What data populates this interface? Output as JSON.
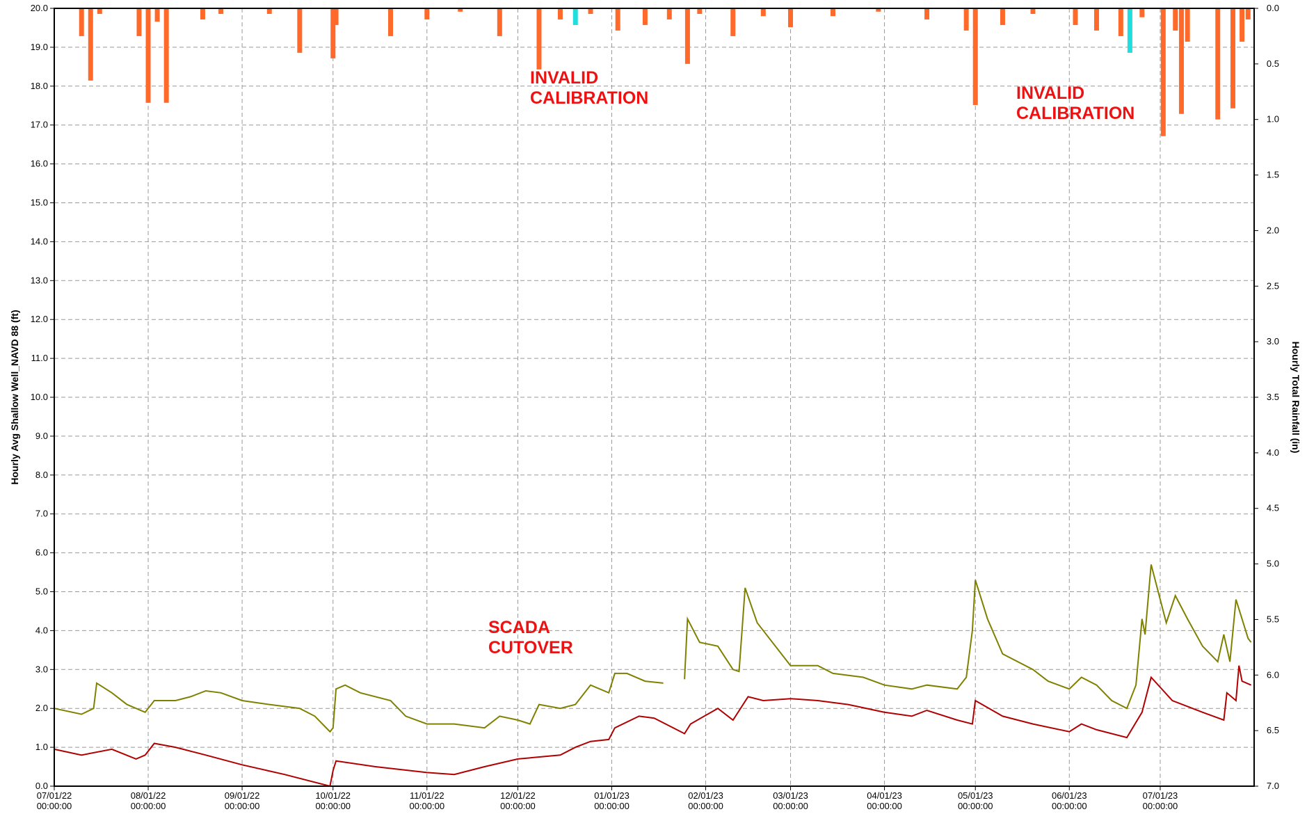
{
  "chart_data": {
    "type": "line",
    "ylabel": "Hourly Avg Shallow Well_NAVD 88 (ft)",
    "y2label": "Hourly Total Rainfall (in)",
    "annotations": [
      "INVALID CALIBRATION",
      "INVALID CALIBRATION",
      "SCADA CUTOVER"
    ],
    "annotation_color": "#ee1111",
    "grid": true,
    "y2_inverted": true,
    "xlim": [
      "2022-07-01",
      "2023-08-01"
    ],
    "xticks": [
      {
        "value": "2022-07-01",
        "label": "07/01/22 00:00:00"
      },
      {
        "value": "2022-08-01",
        "label": "08/01/22 00:00:00"
      },
      {
        "value": "2022-09-01",
        "label": "09/01/22 00:00:00"
      },
      {
        "value": "2022-10-01",
        "label": "10/01/22 00:00:00"
      },
      {
        "value": "2022-11-01",
        "label": "11/01/22 00:00:00"
      },
      {
        "value": "2022-12-01",
        "label": "12/01/22 00:00:00"
      },
      {
        "value": "2023-01-01",
        "label": "01/01/23 00:00:00"
      },
      {
        "value": "2023-02-01",
        "label": "02/01/23 00:00:00"
      },
      {
        "value": "2023-03-01",
        "label": "03/01/23 00:00:00"
      },
      {
        "value": "2023-04-01",
        "label": "04/01/23 00:00:00"
      },
      {
        "value": "2023-05-01",
        "label": "05/01/23 00:00:00"
      },
      {
        "value": "2023-06-01",
        "label": "06/01/23 00:00:00"
      },
      {
        "value": "2023-07-01",
        "label": "07/01/23 00:00:00"
      }
    ],
    "ylim": [
      0,
      20
    ],
    "yticks": [
      {
        "value": 0,
        "label": "0.0"
      },
      {
        "value": 1,
        "label": "1.0"
      },
      {
        "value": 2,
        "label": "2.0"
      },
      {
        "value": 3,
        "label": "3.0"
      },
      {
        "value": 4,
        "label": "4.0"
      },
      {
        "value": 5,
        "label": "5.0"
      },
      {
        "value": 6,
        "label": "6.0"
      },
      {
        "value": 7,
        "label": "7.0"
      },
      {
        "value": 8,
        "label": "8.0"
      },
      {
        "value": 9,
        "label": "9.0"
      },
      {
        "value": 10,
        "label": "10.0"
      },
      {
        "value": 11,
        "label": "11.0"
      },
      {
        "value": 12,
        "label": "12.0"
      },
      {
        "value": 13,
        "label": "13.0"
      },
      {
        "value": 14,
        "label": "14.0"
      },
      {
        "value": 15,
        "label": "15.0"
      },
      {
        "value": 16,
        "label": "16.0"
      },
      {
        "value": 17,
        "label": "17.0"
      },
      {
        "value": 18,
        "label": "18.0"
      },
      {
        "value": 19,
        "label": "19.0"
      },
      {
        "value": 20,
        "label": "20.0"
      }
    ],
    "y2lim": [
      0,
      7
    ],
    "y2ticks": [
      {
        "value": 0,
        "label": "0.0"
      },
      {
        "value": 0.5,
        "label": "0.5"
      },
      {
        "value": 1,
        "label": "1.0"
      },
      {
        "value": 1.5,
        "label": "1.5"
      },
      {
        "value": 2,
        "label": "2.0"
      },
      {
        "value": 2.5,
        "label": "2.5"
      },
      {
        "value": 3,
        "label": "3.0"
      },
      {
        "value": 3.5,
        "label": "3.5"
      },
      {
        "value": 4,
        "label": "4.0"
      },
      {
        "value": 4.5,
        "label": "4.5"
      },
      {
        "value": 5,
        "label": "5.0"
      },
      {
        "value": 5.5,
        "label": "5.5"
      },
      {
        "value": 6,
        "label": "6.0"
      },
      {
        "value": 6.5,
        "label": "6.5"
      },
      {
        "value": 7,
        "label": "7.0"
      }
    ],
    "series": [
      {
        "type": "line",
        "color": "#808000",
        "x": [
          "2022-07-01",
          "2022-07-10",
          "2022-07-14",
          "2022-07-15",
          "2022-07-20",
          "2022-07-25",
          "2022-07-31",
          "2022-08-03",
          "2022-08-10",
          "2022-08-15",
          "2022-08-20",
          "2022-08-25",
          "2022-09-01",
          "2022-09-10",
          "2022-09-20",
          "2022-09-25",
          "2022-09-30",
          "2022-10-01",
          "2022-10-02",
          "2022-10-05",
          "2022-10-10",
          "2022-10-20",
          "2022-10-25",
          "2022-11-01",
          "2022-11-10",
          "2022-11-20",
          "2022-11-25",
          "2022-12-01",
          "2022-12-05",
          "2022-12-08",
          "2022-12-15",
          "2022-12-20",
          "2022-12-25",
          "2022-12-31",
          "2023-01-02",
          "2023-01-06",
          "2023-01-12",
          "2023-01-18",
          "2023-01-21",
          "2023-01-25",
          "2023-01-26",
          "2023-01-30",
          "2023-02-05",
          "2023-02-10",
          "2023-02-12",
          "2023-02-14",
          "2023-02-18",
          "2023-02-25",
          "2023-03-01",
          "2023-03-10",
          "2023-03-15",
          "2023-03-25",
          "2023-04-01",
          "2023-04-10",
          "2023-04-15",
          "2023-04-25",
          "2023-04-28",
          "2023-04-30",
          "2023-05-01",
          "2023-05-05",
          "2023-05-10",
          "2023-05-20",
          "2023-05-25",
          "2023-06-01",
          "2023-06-05",
          "2023-06-10",
          "2023-06-15",
          "2023-06-20",
          "2023-06-23",
          "2023-06-25",
          "2023-06-26",
          "2023-06-28",
          "2023-07-03",
          "2023-07-06",
          "2023-07-10",
          "2023-07-15",
          "2023-07-20",
          "2023-07-22",
          "2023-07-24",
          "2023-07-26",
          "2023-07-30",
          "2023-07-31"
        ],
        "values": [
          2.0,
          1.85,
          2.0,
          2.65,
          2.4,
          2.1,
          1.9,
          2.2,
          2.2,
          2.3,
          2.45,
          2.4,
          2.2,
          2.1,
          2.0,
          1.8,
          1.4,
          1.5,
          2.5,
          2.6,
          2.4,
          2.2,
          1.8,
          1.6,
          1.6,
          1.5,
          1.8,
          1.7,
          1.6,
          2.1,
          2.0,
          2.1,
          2.6,
          2.4,
          2.9,
          2.9,
          2.7,
          2.65,
          null,
          2.75,
          4.3,
          3.7,
          3.6,
          3.0,
          2.95,
          5.1,
          4.2,
          3.5,
          3.1,
          3.1,
          2.9,
          2.8,
          2.6,
          2.5,
          2.6,
          2.5,
          2.8,
          4.0,
          5.3,
          4.3,
          3.4,
          3.0,
          2.7,
          2.5,
          2.8,
          2.6,
          2.2,
          2.0,
          2.6,
          4.3,
          3.9,
          5.7,
          4.2,
          4.9,
          4.3,
          3.6,
          3.2,
          3.9,
          3.2,
          4.8,
          3.8,
          3.7
        ]
      },
      {
        "type": "line",
        "color": "#b00000",
        "x": [
          "2022-07-01",
          "2022-07-10",
          "2022-07-20",
          "2022-07-28",
          "2022-07-31",
          "2022-08-03",
          "2022-08-10",
          "2022-08-20",
          "2022-09-01",
          "2022-09-15",
          "2022-09-30",
          "2022-10-01",
          "2022-10-02",
          "2022-10-15",
          "2022-11-01",
          "2022-11-10",
          "2022-11-15",
          "2022-11-20",
          "2022-12-01",
          "2022-12-15",
          "2022-12-20",
          "2022-12-25",
          "2022-12-31",
          "2023-01-02",
          "2023-01-10",
          "2023-01-15",
          "2023-01-25",
          "2023-01-27",
          "2023-02-05",
          "2023-02-10",
          "2023-02-15",
          "2023-02-20",
          "2023-03-01",
          "2023-03-10",
          "2023-03-20",
          "2023-04-01",
          "2023-04-10",
          "2023-04-15",
          "2023-04-25",
          "2023-04-30",
          "2023-05-01",
          "2023-05-10",
          "2023-05-20",
          "2023-06-01",
          "2023-06-05",
          "2023-06-10",
          "2023-06-20",
          "2023-06-25",
          "2023-06-28",
          "2023-07-05",
          "2023-07-15",
          "2023-07-22",
          "2023-07-23",
          "2023-07-26",
          "2023-07-27",
          "2023-07-28",
          "2023-07-31"
        ],
        "values": [
          0.95,
          0.8,
          0.95,
          0.7,
          0.8,
          1.1,
          1.0,
          0.8,
          0.55,
          0.3,
          0.0,
          0.4,
          0.65,
          0.5,
          0.35,
          0.3,
          0.4,
          0.5,
          0.7,
          0.8,
          1.0,
          1.15,
          1.2,
          1.5,
          1.8,
          1.75,
          1.35,
          1.6,
          2.0,
          1.7,
          2.3,
          2.2,
          2.25,
          2.2,
          2.1,
          1.9,
          1.8,
          1.95,
          1.7,
          1.6,
          2.2,
          1.8,
          1.6,
          1.4,
          1.6,
          1.45,
          1.25,
          1.9,
          2.8,
          2.2,
          1.9,
          1.7,
          2.4,
          2.2,
          3.1,
          2.7,
          2.6
        ]
      },
      {
        "type": "bar",
        "axis": "y2",
        "color": "#ff6a2a",
        "x": [
          "2022-07-10",
          "2022-07-13",
          "2022-07-16",
          "2022-07-29",
          "2022-08-01",
          "2022-08-04",
          "2022-08-07",
          "2022-08-19",
          "2022-08-25",
          "2022-09-10",
          "2022-09-20",
          "2022-10-01",
          "2022-10-02",
          "2022-10-20",
          "2022-11-01",
          "2022-11-12",
          "2022-11-25",
          "2022-12-08",
          "2022-12-15",
          "2022-12-25",
          "2023-01-03",
          "2023-01-12",
          "2023-01-20",
          "2023-01-26",
          "2023-01-30",
          "2023-02-10",
          "2023-02-20",
          "2023-03-01",
          "2023-03-15",
          "2023-03-30",
          "2023-04-15",
          "2023-04-28",
          "2023-05-01",
          "2023-05-10",
          "2023-05-20",
          "2023-06-03",
          "2023-06-10",
          "2023-06-18",
          "2023-06-25",
          "2023-07-02",
          "2023-07-06",
          "2023-07-08",
          "2023-07-10",
          "2023-07-20",
          "2023-07-25",
          "2023-07-28",
          "2023-07-30"
        ],
        "values": [
          0.25,
          0.65,
          0.05,
          0.25,
          0.85,
          0.12,
          0.85,
          0.1,
          0.05,
          0.05,
          0.4,
          0.45,
          0.15,
          0.25,
          0.1,
          0.03,
          0.25,
          0.55,
          0.1,
          0.05,
          0.2,
          0.15,
          0.1,
          0.5,
          0.05,
          0.25,
          0.07,
          0.17,
          0.07,
          0.03,
          0.1,
          0.2,
          0.87,
          0.15,
          0.05,
          0.15,
          0.2,
          0.25,
          0.08,
          1.15,
          0.2,
          0.95,
          0.3,
          1.0,
          0.9,
          0.3,
          0.1
        ]
      },
      {
        "type": "bar",
        "axis": "y2",
        "color": "#22dddd",
        "x": [
          "2022-12-20",
          "2023-06-21"
        ],
        "values": [
          0.15,
          0.4
        ]
      }
    ]
  }
}
